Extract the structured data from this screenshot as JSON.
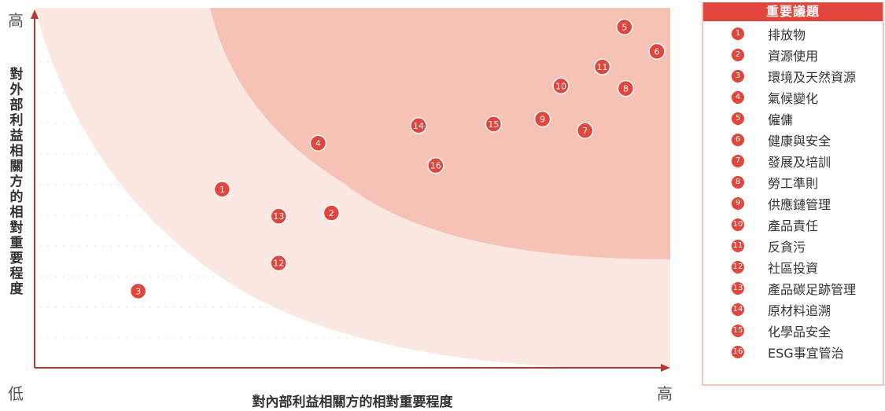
{
  "chart_data": {
    "type": "scatter",
    "xlabel": "對內部利益相關方的相對重要程度",
    "ylabel": "對外部利益相關方的相對重要程度",
    "x_high": "高",
    "y_high": "高",
    "origin_low": "低",
    "xlim": [
      0,
      100
    ],
    "ylim": [
      0,
      100
    ],
    "grid": true,
    "colors": {
      "accent": "#e2453b",
      "zone_high": "#f5c2b5",
      "zone_mid": "#fbe8e2",
      "axis": "#b33a2c"
    },
    "points": [
      {
        "id": "1",
        "x": 29.5,
        "y": 49.6
      },
      {
        "id": "2",
        "x": 46.7,
        "y": 43.0
      },
      {
        "id": "3",
        "x": 16.3,
        "y": 21.3
      },
      {
        "id": "4",
        "x": 44.6,
        "y": 62.4
      },
      {
        "id": "5",
        "x": 92.8,
        "y": 94.7
      },
      {
        "id": "6",
        "x": 97.9,
        "y": 87.9
      },
      {
        "id": "7",
        "x": 86.6,
        "y": 65.9
      },
      {
        "id": "8",
        "x": 93.0,
        "y": 77.6
      },
      {
        "id": "9",
        "x": 79.9,
        "y": 69.1
      },
      {
        "id": "10",
        "x": 82.8,
        "y": 78.3
      },
      {
        "id": "11",
        "x": 89.3,
        "y": 83.6
      },
      {
        "id": "12",
        "x": 38.4,
        "y": 29.1
      },
      {
        "id": "13",
        "x": 38.4,
        "y": 42.1
      },
      {
        "id": "14",
        "x": 60.4,
        "y": 67.3
      },
      {
        "id": "15",
        "x": 72.2,
        "y": 67.7
      },
      {
        "id": "16",
        "x": 63.1,
        "y": 56.2
      }
    ]
  },
  "legend": {
    "title": "重要議題",
    "items": [
      {
        "num": "1",
        "label": "排放物"
      },
      {
        "num": "2",
        "label": "資源使用"
      },
      {
        "num": "3",
        "label": "環境及天然資源"
      },
      {
        "num": "4",
        "label": "氣候變化"
      },
      {
        "num": "5",
        "label": "僱傭"
      },
      {
        "num": "6",
        "label": "健康與安全"
      },
      {
        "num": "7",
        "label": "發展及培訓"
      },
      {
        "num": "8",
        "label": "勞工準則"
      },
      {
        "num": "9",
        "label": "供應鏈管理"
      },
      {
        "num": "10",
        "label": "產品責任"
      },
      {
        "num": "11",
        "label": "反貪污"
      },
      {
        "num": "12",
        "label": "社區投資"
      },
      {
        "num": "13",
        "label": "產品碳足跡管理"
      },
      {
        "num": "14",
        "label": "原材料追溯"
      },
      {
        "num": "15",
        "label": "化學品安全"
      },
      {
        "num": "16",
        "label": "ESG事宜管治"
      }
    ]
  }
}
